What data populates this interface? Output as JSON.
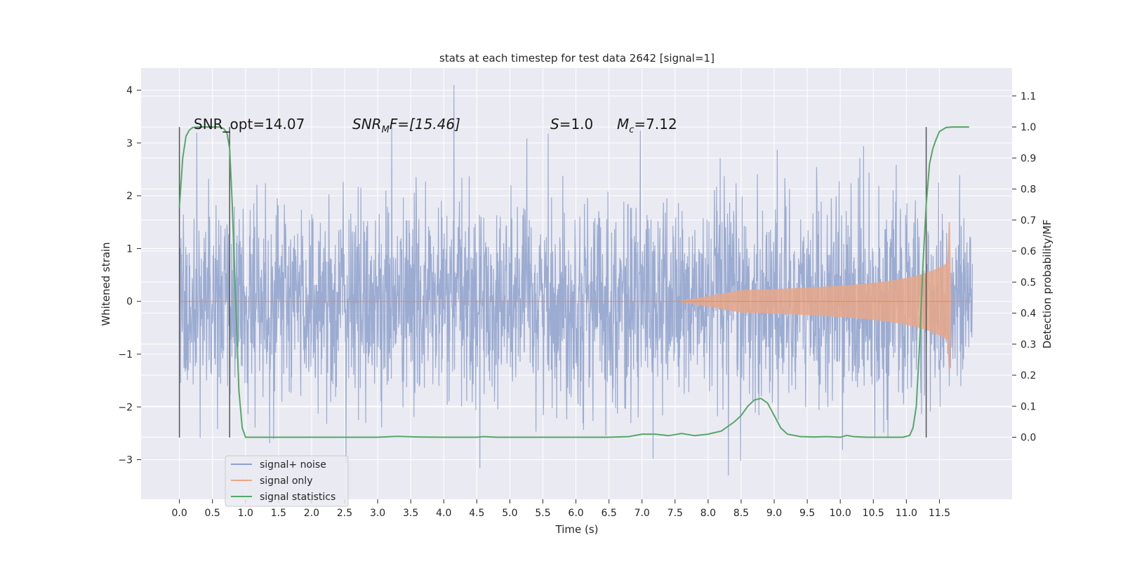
{
  "chart_data": {
    "type": "line",
    "title": "stats at each timestep for test data 2642 [signal=1]",
    "xlabel": "Time (s)",
    "ylabel": "Whitened strain",
    "ylabel_right": "Detection probability/MF",
    "xlim": [
      -0.58,
      12.6
    ],
    "ylim": [
      -3.75,
      4.42
    ],
    "ylim_right": [
      -0.2,
      1.19
    ],
    "x_ticks": [
      "0.0",
      "0.5",
      "1.0",
      "1.5",
      "2.0",
      "2.5",
      "3.0",
      "3.5",
      "4.0",
      "4.5",
      "5.0",
      "5.5",
      "6.0",
      "6.5",
      "7.0",
      "7.5",
      "8.0",
      "8.5",
      "9.0",
      "9.5",
      "10.0",
      "10.5",
      "11.0",
      "11.5"
    ],
    "y_ticks": [
      "4",
      "3",
      "2",
      "1",
      "0",
      "−1",
      "−2",
      "−3"
    ],
    "y_ticks_right": [
      "1.1",
      "1.0",
      "0.9",
      "0.8",
      "0.7",
      "0.6",
      "0.5",
      "0.4",
      "0.3",
      "0.2",
      "0.1",
      "0.0"
    ],
    "grid": true,
    "legend_position": "lower-left",
    "legend": [
      "signal+ noise",
      "signal only",
      "signal statistics"
    ],
    "annotations": {
      "snr_opt": "SNR_opt=14.07",
      "snr_mf_prefix": "SNR",
      "snr_mf_sub": "M",
      "snr_mf_suffix": "F=[15.46]",
      "s_var": "S",
      "s_value": "=1.0",
      "mc_var": "M",
      "mc_sub": "c",
      "mc_value": "=7.12"
    },
    "vertical_lines_x": [
      0.0,
      0.76,
      11.3
    ],
    "series": [
      {
        "name": "signal+ noise",
        "axis": "left",
        "description_kind": "noise",
        "x_range": [
          0.0,
          12.0
        ],
        "amplitude": 1.0,
        "peak": 4.1,
        "trough": -3.3,
        "color": "#8da0cb"
      },
      {
        "name": "signal only",
        "axis": "left",
        "description_kind": "chirp",
        "x_range": [
          0.0,
          12.0
        ],
        "chirp_peak_time": 11.65,
        "chirp_max": 1.5,
        "chirp_min": -1.3,
        "color": "#dd8452"
      },
      {
        "name": "signal statistics",
        "axis": "right",
        "color": "#55a868",
        "x": [
          0.0,
          0.05,
          0.1,
          0.15,
          0.2,
          0.3,
          0.45,
          0.6,
          0.67,
          0.72,
          0.76,
          0.8,
          0.85,
          0.9,
          0.95,
          1.0,
          1.5,
          2.0,
          2.5,
          3.0,
          3.3,
          3.6,
          4.0,
          4.5,
          4.6,
          4.8,
          5.5,
          6.0,
          6.5,
          6.8,
          7.0,
          7.2,
          7.4,
          7.6,
          7.8,
          8.0,
          8.2,
          8.4,
          8.5,
          8.6,
          8.7,
          8.8,
          8.9,
          9.0,
          9.1,
          9.2,
          9.4,
          9.6,
          9.8,
          10.0,
          10.1,
          10.2,
          10.4,
          10.8,
          10.95,
          11.05,
          11.1,
          11.15,
          11.2,
          11.25,
          11.3,
          11.35,
          11.4,
          11.45,
          11.5,
          11.6,
          11.7,
          11.95
        ],
        "y": [
          0.74,
          0.9,
          0.97,
          0.99,
          0.998,
          1.0,
          1.0,
          1.0,
          0.995,
          0.98,
          0.93,
          0.75,
          0.45,
          0.15,
          0.03,
          0.0,
          0.0,
          0.0,
          0.0,
          0.0,
          0.003,
          0.001,
          0.0,
          0.0,
          0.002,
          0.0,
          0.0,
          0.0,
          0.0,
          0.002,
          0.01,
          0.01,
          0.005,
          0.012,
          0.005,
          0.01,
          0.02,
          0.05,
          0.07,
          0.1,
          0.12,
          0.125,
          0.11,
          0.07,
          0.03,
          0.01,
          0.002,
          0.001,
          0.002,
          0.0,
          0.006,
          0.002,
          0.0,
          0.0,
          0.0,
          0.006,
          0.03,
          0.1,
          0.3,
          0.55,
          0.75,
          0.88,
          0.93,
          0.96,
          0.985,
          0.998,
          1.0,
          1.0
        ]
      }
    ]
  }
}
